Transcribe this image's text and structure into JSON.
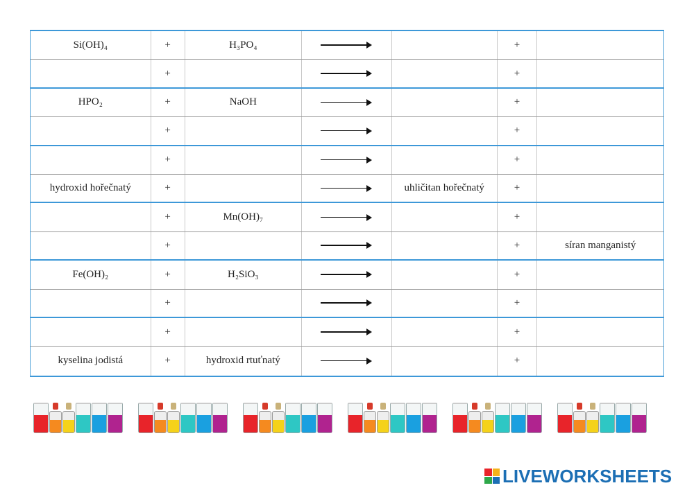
{
  "rows": [
    {
      "c1": "Si(OH)₄",
      "plus1": "+",
      "c3": "H₃PO₄",
      "c5": "",
      "plus2": "+",
      "c7": ""
    },
    {
      "c1": "",
      "plus1": "+",
      "c3": "",
      "c5": "",
      "plus2": "+",
      "c7": ""
    },
    {
      "c1": "HPO₂",
      "plus1": "+",
      "c3": "NaOH",
      "c5": "",
      "plus2": "+",
      "c7": ""
    },
    {
      "c1": "",
      "plus1": "+",
      "c3": "",
      "c5": "",
      "plus2": "+",
      "c7": ""
    },
    {
      "c1": "",
      "plus1": "+",
      "c3": "",
      "c5": "",
      "plus2": "+",
      "c7": ""
    },
    {
      "c1": "hydroxid hořečnatý",
      "plus1": "+",
      "c3": "",
      "c5": "uhličitan hořečnatý",
      "plus2": "+",
      "c7": ""
    },
    {
      "c1": "",
      "plus1": "+",
      "c3": "Mn(OH)₇",
      "c5": "",
      "plus2": "+",
      "c7": ""
    },
    {
      "c1": "",
      "plus1": "+",
      "c3": "",
      "c5": "",
      "plus2": "+",
      "c7": "síran manganistý"
    },
    {
      "c1": "Fe(OH)₂",
      "plus1": "+",
      "c3": "H₂SiO₃",
      "c5": "",
      "plus2": "+",
      "c7": ""
    },
    {
      "c1": "",
      "plus1": "+",
      "c3": "",
      "c5": "",
      "plus2": "+",
      "c7": ""
    },
    {
      "c1": "",
      "plus1": "+",
      "c3": "",
      "c5": "",
      "plus2": "+",
      "c7": ""
    },
    {
      "c1": "kyselina jodistá",
      "plus1": "+",
      "c3": "hydroxid rtuťnatý",
      "c5": "",
      "plus2": "+",
      "c7": ""
    }
  ],
  "colors": {
    "table_border": "#3d98d8",
    "row_divider": "#9a9a9a",
    "logo_blue": "#1c6fb4",
    "liquids": [
      "#e8242a",
      "#f58a1f",
      "#f5d21a",
      "#2ec7c4",
      "#1aa0e0",
      "#b0238f"
    ]
  },
  "footer": {
    "logo_text": "LIVEWORKSHEETS"
  },
  "icons": {
    "arrow": "right-arrow-icon",
    "decoration": "beakers-decoration",
    "logo": "liveworksheets-logo-icon"
  }
}
